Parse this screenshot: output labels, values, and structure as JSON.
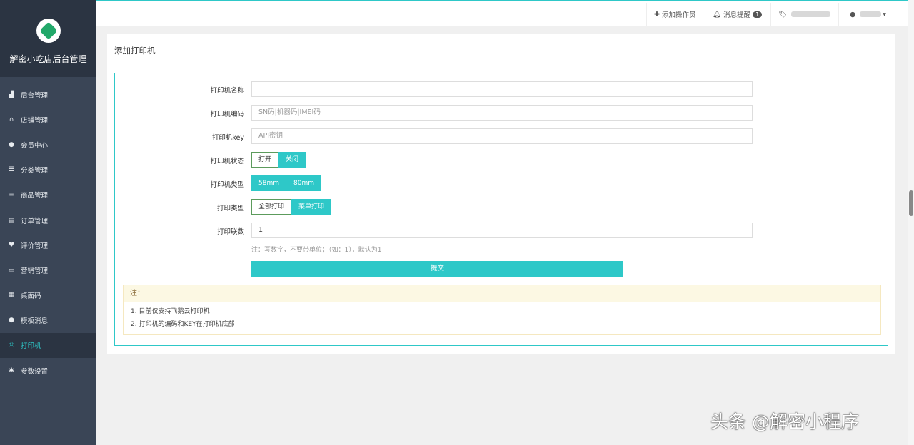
{
  "sidebar": {
    "brand": "解密小吃店后台管理",
    "items": [
      {
        "label": "后台管理",
        "icon": "chart-icon"
      },
      {
        "label": "店铺管理",
        "icon": "home-icon"
      },
      {
        "label": "会员中心",
        "icon": "user-icon"
      },
      {
        "label": "分类管理",
        "icon": "list-icon"
      },
      {
        "label": "商品管理",
        "icon": "bars-icon"
      },
      {
        "label": "订单管理",
        "icon": "file-icon"
      },
      {
        "label": "评价管理",
        "icon": "heart-icon"
      },
      {
        "label": "营销管理",
        "icon": "card-icon"
      },
      {
        "label": "桌面码",
        "icon": "qrcode-icon"
      },
      {
        "label": "模板消息",
        "icon": "comment-icon"
      },
      {
        "label": "打印机",
        "icon": "print-icon",
        "active": true
      },
      {
        "label": "参数设置",
        "icon": "gear-icon"
      }
    ]
  },
  "topbar": {
    "add_operator": "添加操作员",
    "notifications": "消息提醒",
    "notification_count": "1"
  },
  "page": {
    "title": "添加打印机",
    "fields": {
      "name_label": "打印机名称",
      "name_value": "",
      "code_label": "打印机编码",
      "code_placeholder": "SN码|机器码|IMEI码",
      "key_label": "打印机key",
      "key_placeholder": "API密钥",
      "status_label": "打印机状态",
      "status_options": [
        "打开",
        "关闭"
      ],
      "status_selected": "关闭",
      "type_label": "打印机类型",
      "type_options": [
        "58mm",
        "80mm"
      ],
      "print_type_label": "打印类型",
      "print_type_options": [
        "全部打印",
        "菜单打印"
      ],
      "print_type_selected": "菜单打印",
      "copies_label": "打印联数",
      "copies_value": "1",
      "copies_hint": "注：写数字，不要带单位；（如：1），默认为1"
    },
    "submit": "提交",
    "note": {
      "title": "注：",
      "lines": [
        "1. 目前仅支持飞鹅云打印机",
        "2. 打印机的编码和KEY在打印机底部"
      ]
    }
  },
  "watermark": "头条 @解密小程序",
  "colors": {
    "accent": "#2ec8c8",
    "sidebar": "#3a4556"
  }
}
